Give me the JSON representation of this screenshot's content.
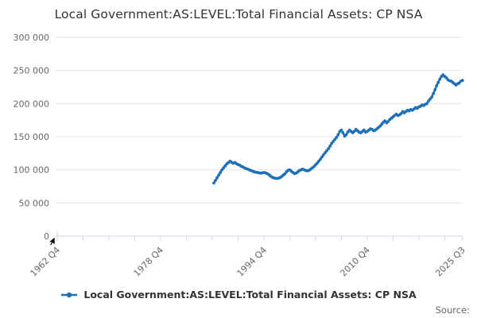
{
  "title": "Local Government:AS:LEVEL:Total Financial Assets: CP NSA",
  "source_label": "Source:",
  "legend": {
    "label": "Local Government:AS:LEVEL:Total Financial Assets: CP NSA"
  },
  "colors": {
    "line": "#1d70b8",
    "grid": "#e6e6e6",
    "axis": "#ccd6eb",
    "tick_label": "#666666",
    "title_text": "#333333"
  },
  "chart_data": {
    "type": "line",
    "title": "Local Government:AS:LEVEL:Total Financial Assets: CP NSA",
    "legend_position": "bottom",
    "grid": true,
    "y_axis": {
      "range": [
        0,
        300000
      ],
      "tick_values": [
        0,
        50000,
        100000,
        150000,
        200000,
        250000,
        300000
      ],
      "tick_labels": [
        "0",
        "50 000",
        "100 000",
        "150 000",
        "200 000",
        "250 000",
        "300 000"
      ]
    },
    "x_axis": {
      "start_period": "1962 Q4",
      "end_period": "2025 Q3",
      "total_quarters": 251,
      "minor_tick_every_quarters": 16,
      "labeled_tick_quarters": [
        0,
        64,
        128,
        192,
        251
      ],
      "tick_labels": [
        "1962 Q4",
        "1978 Q4",
        "1994 Q4",
        "2010 Q4",
        "2025 Q3"
      ]
    },
    "series": [
      {
        "name": "Local Government:AS:LEVEL:Total Financial Assets: CP NSA",
        "color": "#1d70b8",
        "start_period": "1987 Q1",
        "start_quarter_index": 97,
        "frequency": "quarterly",
        "values": [
          80000,
          84000,
          88000,
          92000,
          96000,
          100000,
          103000,
          106000,
          109000,
          111000,
          113000,
          111500,
          110000,
          111000,
          109500,
          108000,
          107000,
          105500,
          104500,
          103000,
          102000,
          101000,
          100000,
          99000,
          98000,
          97000,
          96500,
          96000,
          95500,
          95000,
          95500,
          96000,
          95500,
          94500,
          93000,
          91000,
          89000,
          88000,
          87500,
          87000,
          87500,
          88500,
          90000,
          92000,
          94000,
          97000,
          99500,
          100000,
          98000,
          96000,
          94500,
          95000,
          97000,
          99000,
          100000,
          101000,
          100000,
          99000,
          98500,
          99500,
          101000,
          103000,
          105000,
          107500,
          110000,
          113000,
          116000,
          119500,
          123000,
          126000,
          129000,
          132000,
          136000,
          140000,
          143000,
          146000,
          149000,
          153000,
          158000,
          160000,
          156000,
          151000,
          153000,
          157000,
          160000,
          158000,
          156000,
          158000,
          161000,
          159000,
          157000,
          156000,
          158000,
          160000,
          157000,
          158000,
          160000,
          162000,
          161000,
          159000,
          160000,
          162000,
          164000,
          166000,
          169000,
          172000,
          174000,
          171000,
          173000,
          176000,
          178000,
          180000,
          182000,
          184000,
          182000,
          183000,
          185000,
          188000,
          186000,
          188000,
          190000,
          189000,
          191000,
          190000,
          192000,
          194000,
          193000,
          195000,
          196000,
          198000,
          197000,
          199000,
          200000,
          204000,
          207000,
          210000,
          215000,
          221000,
          227000,
          232000,
          237000,
          241000,
          243500,
          241000,
          239000,
          236000,
          234500,
          234000,
          232000,
          230000,
          228000,
          230000,
          231000,
          234000,
          235000
        ]
      }
    ]
  }
}
